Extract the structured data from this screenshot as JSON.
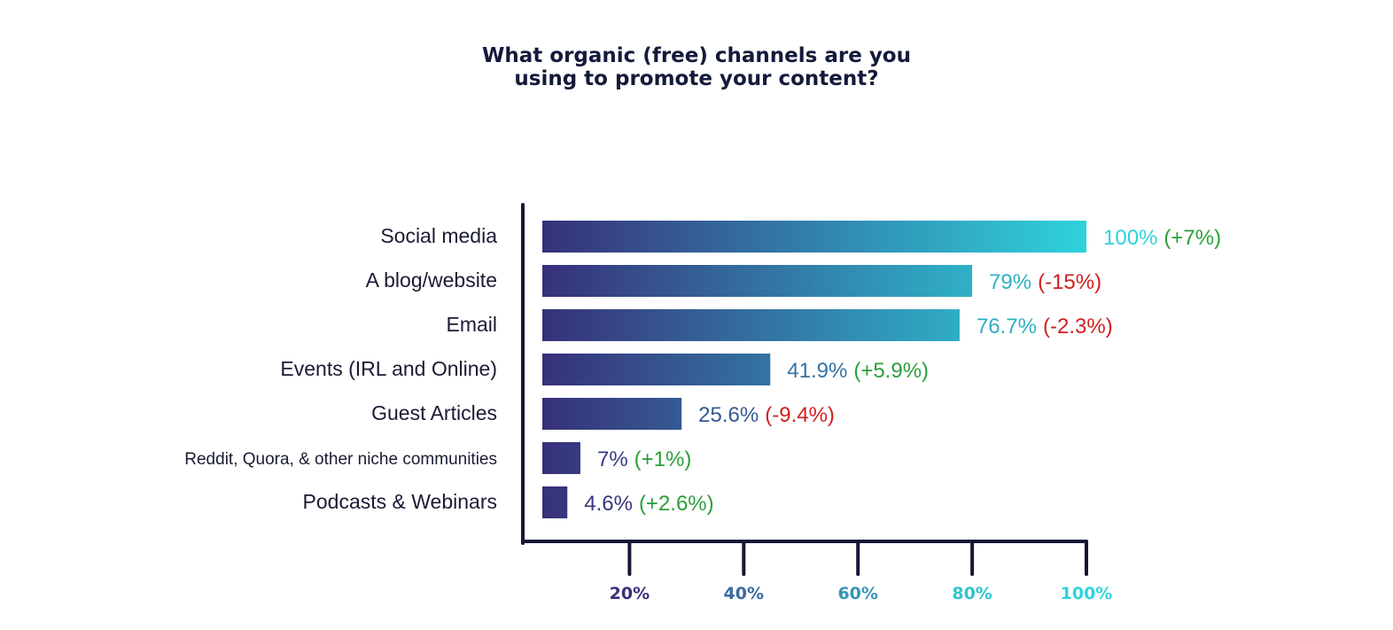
{
  "title_lines": [
    "What organic (free) channels are you",
    "using to promote your content?"
  ],
  "colors": {
    "axis": "#161833",
    "category_label": "#1a1c33",
    "bar_gradient_start": "#37307a",
    "bar_gradient_end": "#2dd3dc",
    "increase": "#2a9f3a",
    "decrease": "#d11f1f"
  },
  "chart_data": {
    "type": "bar",
    "orientation": "horizontal",
    "title": "What organic (free) channels are you using to promote your content?",
    "categories": [
      "Social media",
      "A blog/website",
      "Email",
      "Events (IRL and Online)",
      "Guest Articles",
      "Reddit, Quora, & other niche communities",
      "Podcasts & Webinars"
    ],
    "values": [
      100,
      79,
      76.7,
      41.9,
      25.6,
      7,
      4.6
    ],
    "value_labels": [
      "100%",
      "79%",
      "76.7%",
      "41.9%",
      "25.6%",
      "7%",
      "4.6%"
    ],
    "change_labels": [
      "(+7%)",
      "(-15%)",
      "(-2.3%)",
      "(+5.9%)",
      "(-9.4%)",
      "(+1%)",
      "(+2.6%)"
    ],
    "changes": [
      7,
      -15,
      -2.3,
      5.9,
      -9.4,
      1,
      2.6
    ],
    "x_ticks": [
      20,
      40,
      60,
      80,
      100
    ],
    "x_tick_labels": [
      "20%",
      "40%",
      "60%",
      "80%",
      "100%"
    ],
    "x_tick_colors": [
      "#37307a",
      "#3a6aa0",
      "#3596b7",
      "#31c4cd",
      "#2dd3dc"
    ],
    "xlim": [
      0,
      100
    ],
    "grid": false,
    "legend": "none"
  }
}
